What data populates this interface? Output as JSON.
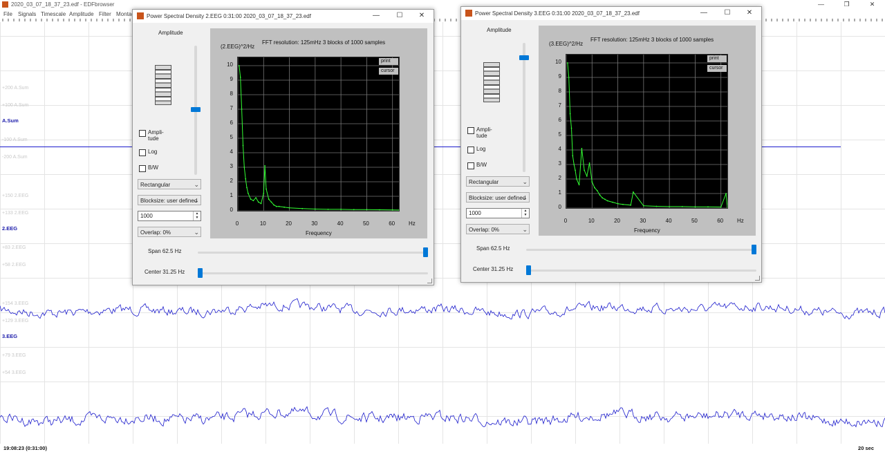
{
  "app": {
    "title": "2020_03_07_18_37_23.edf - EDFbrowser"
  },
  "menu": [
    "File",
    "Signals",
    "Timescale",
    "Amplitude",
    "Filter",
    "Montage"
  ],
  "signals": [
    {
      "top_scale": "+200 A.Sum",
      "upper_scale": "+100 A.Sum",
      "name": "A.Sum",
      "lower_scale": "-100 A.Sum",
      "bottom_scale": "-200 A.Sum"
    },
    {
      "top_scale": "+150 2.EEG",
      "upper_scale": "+133 2.EEG",
      "name": "2.EEG",
      "lower_scale": "+83 2.EEG",
      "bottom_scale": "+58 2.EEG"
    },
    {
      "top_scale": "+154 3.EEG",
      "upper_scale": "+129 3.EEG",
      "name": "3.EEG",
      "lower_scale": "+79 3.EEG",
      "bottom_scale": "+54 3.EEG"
    }
  ],
  "status": {
    "time": "19:08:23 (0:31:00)",
    "timescale": "20 sec"
  },
  "windows": [
    {
      "title": "Power Spectral Density    2.EEG   0:31:00   2020_03_07_18_37_23.edf",
      "amplitude_label": "Amplitude",
      "checkboxes": {
        "amplitude": "Ampli- tude",
        "log": "Log",
        "bw": "B/W"
      },
      "window_fn": "Rectangular",
      "blocksize": "Blocksize: user defined",
      "blocksize_value": "1000",
      "overlap": "Overlap: 0%",
      "info": "FFT resolution: 125mHz   3 blocks of 1000 samples",
      "ylabel": "(2.EEG)^2/Hz",
      "xlabel": "Frequency",
      "unit": "Hz",
      "print_label": "print",
      "cursor_label": "cursor",
      "span": "Span 62.5 Hz",
      "center": "Center 31.25 Hz"
    },
    {
      "title": "Power Spectral Density    3.EEG   0:31:00   2020_03_07_18_37_23.edf",
      "amplitude_label": "Amplitude",
      "checkboxes": {
        "amplitude": "Ampli- tude",
        "log": "Log",
        "bw": "B/W"
      },
      "window_fn": "Rectangular",
      "blocksize": "Blocksize: user defined",
      "blocksize_value": "1000",
      "overlap": "Overlap: 0%",
      "info": "FFT resolution: 125mHz   3 blocks of 1000 samples",
      "ylabel": "(3.EEG)^2/Hz",
      "xlabel": "Frequency",
      "unit": "Hz",
      "print_label": "print",
      "cursor_label": "cursor",
      "span": "Span 62.5 Hz",
      "center": "Center 31.25 Hz"
    }
  ],
  "chart_data": [
    {
      "type": "line",
      "xlim": [
        0,
        62.5
      ],
      "ylim": [
        0,
        10
      ],
      "xticks": [
        0,
        10,
        20,
        30,
        40,
        50,
        60
      ],
      "yticks": [
        0,
        1,
        2,
        3,
        4,
        5,
        6,
        7,
        8,
        9,
        10
      ],
      "grid": true,
      "color": "#33ff33",
      "x": [
        0.5,
        1,
        1.5,
        2,
        2.5,
        3,
        3.5,
        4,
        5,
        6,
        7,
        8,
        9,
        10,
        10.5,
        11,
        12,
        13,
        14,
        15,
        16,
        18,
        20,
        25,
        30,
        35,
        40,
        45,
        50,
        55,
        60,
        62.5
      ],
      "y": [
        10,
        9.2,
        7,
        4.5,
        3,
        2.2,
        1.6,
        1.2,
        0.8,
        0.7,
        0.9,
        0.6,
        0.5,
        1.2,
        3.1,
        1.5,
        0.8,
        0.6,
        0.4,
        0.3,
        0.3,
        0.25,
        0.2,
        0.15,
        0.12,
        0.1,
        0.1,
        0.08,
        0.08,
        0.07,
        0.06,
        0.05
      ]
    },
    {
      "type": "line",
      "xlim": [
        0,
        62.5
      ],
      "ylim": [
        0,
        10
      ],
      "xticks": [
        0,
        10,
        20,
        30,
        40,
        50,
        60
      ],
      "yticks": [
        0,
        1,
        2,
        3,
        4,
        5,
        6,
        7,
        8,
        9,
        10
      ],
      "grid": true,
      "color": "#33ff33",
      "x": [
        0.5,
        1,
        1.5,
        2,
        2.5,
        3,
        3.5,
        4,
        5,
        6,
        7,
        8,
        9,
        10,
        11,
        12,
        13,
        14,
        15,
        16,
        18,
        20,
        22,
        25,
        26,
        30,
        35,
        40,
        45,
        50,
        55,
        60,
        62,
        62.5
      ],
      "y": [
        10,
        9,
        6.5,
        5.5,
        3.6,
        3,
        2.6,
        2,
        1.6,
        4.1,
        2.6,
        2.2,
        3.1,
        1.8,
        1.4,
        1.2,
        0.9,
        0.7,
        0.6,
        0.5,
        0.4,
        0.3,
        0.25,
        0.2,
        1.1,
        0.15,
        0.12,
        0.1,
        0.1,
        0.08,
        0.08,
        0.07,
        1,
        0.05
      ]
    }
  ]
}
